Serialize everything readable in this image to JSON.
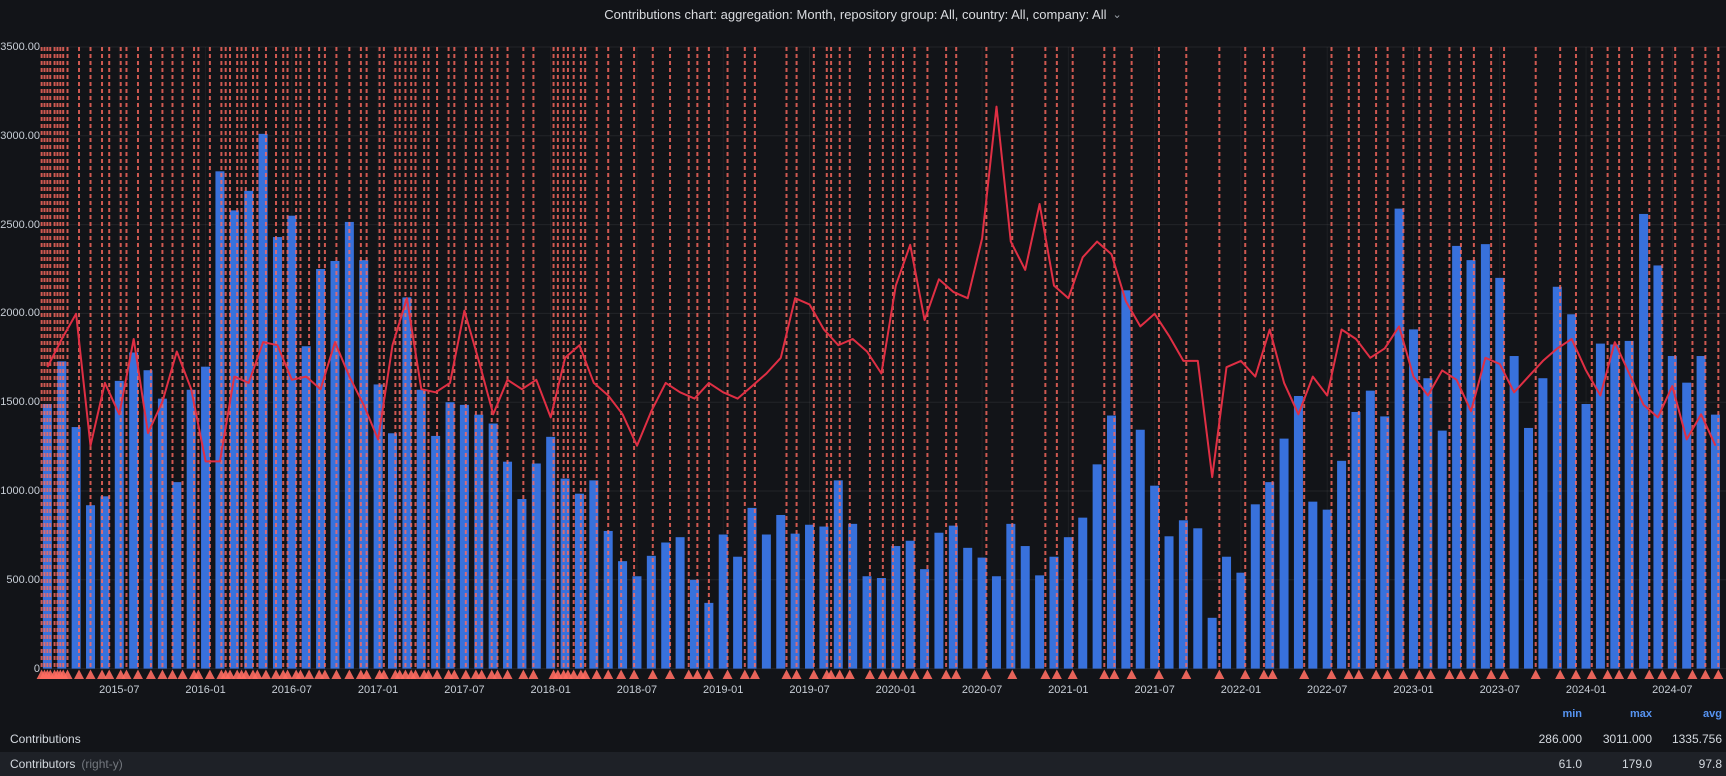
{
  "title": {
    "text": "Contributions chart: aggregation: Month, repository group: All, country: All, company: All",
    "chevron": "⌄"
  },
  "y_axis": {
    "labels": [
      "3500.00",
      "3000.00",
      "2500.00",
      "2000.00",
      "1500.00",
      "1000.00",
      "500.00",
      "0"
    ]
  },
  "x_axis": {
    "tick_labels": [
      "2015-07",
      "2016-01",
      "2016-07",
      "2017-01",
      "2017-07",
      "2018-01",
      "2018-07",
      "2019-01",
      "2019-07",
      "2020-01",
      "2020-07",
      "2021-01",
      "2021-07",
      "2022-01",
      "2022-07",
      "2023-01",
      "2023-07",
      "2024-01",
      "2024-07"
    ]
  },
  "legend": {
    "headers": {
      "min": "min",
      "max": "max",
      "avg": "avg"
    },
    "rows": [
      {
        "label": "Contributions",
        "suffix": "",
        "min": "286.000",
        "max": "3011.000",
        "avg": "1335.756"
      },
      {
        "label": "Contributors",
        "suffix": "(right-y)",
        "min": "61.0",
        "max": "179.0",
        "avg": "97.8"
      }
    ]
  },
  "colors": {
    "background": "#121418",
    "bar": "#3871dc",
    "line": "#e02f44",
    "annotation": "#ff6b60",
    "grid": "rgba(255,255,255,0.07)",
    "axis_text": "#c8ced6",
    "legend_header": "#5794f2",
    "row_highlight": "#1e2127"
  },
  "chart_data": {
    "type": "bar+line",
    "title": "Contributions chart: aggregation: Month, repository group: All, country: All, company: All",
    "start_month": "2015-02",
    "x_tick_labels": [
      "2015-07",
      "2016-01",
      "2016-07",
      "2017-01",
      "2017-07",
      "2018-01",
      "2018-07",
      "2019-01",
      "2019-07",
      "2020-01",
      "2020-07",
      "2021-01",
      "2021-07",
      "2022-01",
      "2022-07",
      "2023-01",
      "2023-07",
      "2024-01",
      "2024-07"
    ],
    "y_left": {
      "min": 0,
      "max": 3500,
      "tick_step": 500
    },
    "y_right": {
      "min": 0,
      "max": 198,
      "axis_drawn": false
    },
    "legend_position": "bottom",
    "grid": true,
    "series": [
      {
        "name": "Contributions",
        "type": "bar",
        "axis": "left",
        "color": "#3871dc",
        "stats": {
          "min": 286.0,
          "max": 3011.0,
          "avg": 1335.756
        },
        "values": [
          1490,
          1730,
          1360,
          920,
          970,
          1620,
          1780,
          1680,
          1520,
          1050,
          1570,
          1700,
          2800,
          2580,
          2690,
          3011,
          2430,
          2550,
          1815,
          2250,
          2295,
          2515,
          2300,
          1600,
          1325,
          2090,
          1570,
          1310,
          1500,
          1485,
          1430,
          1380,
          1165,
          955,
          1155,
          1305,
          1070,
          985,
          1060,
          775,
          605,
          520,
          635,
          710,
          740,
          500,
          370,
          755,
          630,
          905,
          755,
          865,
          760,
          810,
          800,
          1060,
          815,
          520,
          510,
          690,
          720,
          560,
          765,
          805,
          680,
          625,
          520,
          815,
          690,
          525,
          630,
          740,
          850,
          1150,
          1425,
          2130,
          1345,
          1030,
          745,
          835,
          790,
          286,
          630,
          540,
          925,
          1050,
          1295,
          1535,
          940,
          895,
          1170,
          1445,
          1565,
          1420,
          2590,
          1910,
          1635,
          1340,
          2380,
          2300,
          2390,
          2200,
          1760,
          1355,
          1635,
          2150,
          1995,
          1490,
          1830,
          1825,
          1845,
          2560,
          2270,
          1760,
          1610,
          1760,
          1430
        ]
      },
      {
        "name": "Contributors",
        "type": "line",
        "axis": "right",
        "color": "#e02f44",
        "stats": {
          "min": 61.0,
          "max": 179.0,
          "avg": 97.8
        },
        "values": [
          96,
          105,
          113,
          71,
          91,
          81,
          105,
          75,
          85,
          101,
          89,
          66,
          66,
          93,
          91,
          104,
          103,
          92,
          93,
          89,
          104,
          93,
          84,
          73,
          103,
          118,
          89,
          88,
          91,
          114,
          98,
          81,
          92,
          89,
          92,
          80,
          99,
          103,
          91,
          87,
          81,
          71,
          82,
          91,
          88,
          86,
          91,
          88,
          86,
          90,
          94,
          99,
          118,
          116,
          108,
          103,
          105,
          101,
          94,
          122,
          135,
          111,
          124,
          120,
          118,
          137,
          179,
          136,
          127,
          148,
          122,
          118,
          131,
          136,
          132,
          117,
          109,
          113,
          106,
          98,
          98,
          61,
          96,
          98,
          93,
          108,
          91,
          81,
          93,
          87,
          108,
          105,
          99,
          102,
          109,
          93,
          87,
          95,
          92,
          82,
          99,
          97,
          88,
          93,
          98,
          102,
          105,
          95,
          87,
          104,
          94,
          84,
          80,
          90,
          73,
          81,
          71
        ]
      }
    ],
    "annotations": {
      "color": "#ff6b60",
      "style": "dashed-vertical-line",
      "marker": "triangle",
      "positions_months_from_2015_01": [
        0.6,
        0.8,
        1.0,
        1.2,
        1.5,
        1.7,
        1.9,
        2.1,
        2.4,
        3.2,
        4.0,
        4.8,
        5.3,
        6.1,
        6.5,
        7.3,
        8.2,
        9.0,
        9.7,
        10.4,
        11.2,
        11.5,
        12.3,
        13.1,
        13.4,
        13.7,
        14.2,
        14.5,
        14.8,
        15.3,
        15.6,
        16.2,
        16.9,
        17.4,
        17.7,
        18.3,
        18.6,
        19.2,
        19.9,
        20.3,
        21.1,
        22.0,
        22.8,
        23.2,
        24.1,
        24.4,
        25.2,
        25.5,
        25.9,
        26.3,
        26.6,
        27.2,
        27.5,
        28.1,
        28.9,
        29.3,
        30.1,
        30.8,
        31.2,
        31.9,
        32.3,
        33.0,
        34.1,
        34.8,
        36.2,
        36.5,
        36.9,
        37.2,
        37.6,
        38.1,
        38.4,
        39.2,
        40.0,
        40.9,
        41.8,
        43.1,
        44.3,
        45.6,
        46.2,
        47.0,
        48.3,
        49.5,
        50.2,
        52.4,
        53.1,
        54.3,
        55.2,
        55.5,
        56.1,
        56.8,
        58.2,
        59.1,
        59.8,
        60.5,
        61.3,
        62.2,
        63.5,
        64.2,
        66.3,
        68.1,
        70.4,
        71.2,
        72.3,
        74.5,
        75.2,
        76.4,
        78.3,
        80.2,
        82.5,
        84.3,
        85.6,
        86.2,
        88.4,
        90.3,
        91.5,
        92.2,
        93.4,
        94.2,
        95.3,
        96.4,
        97.2,
        98.5,
        99.3,
        100.2,
        101.4,
        102.3,
        104.5,
        106.2,
        107.3,
        108.4,
        109.5,
        110.3,
        111.2,
        112.4,
        113.3,
        114.2,
        115.4,
        116.3,
        117.2
      ]
    }
  }
}
